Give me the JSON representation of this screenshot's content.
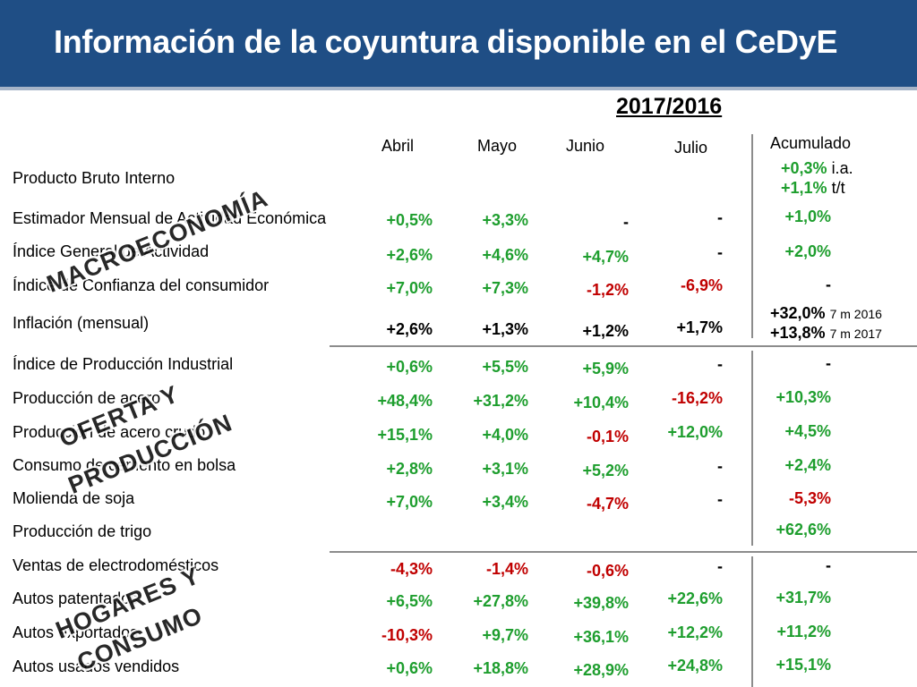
{
  "title": "Información de la coyuntura disponible en el CeDyE",
  "period": "2017/2016",
  "columns": [
    "Abril",
    "Mayo",
    "Junio",
    "Julio",
    "Acumulado"
  ],
  "sections": {
    "macro": "MACROECONOMÍA",
    "oferta": [
      "OFERTA Y",
      "PRODUCCIÓN"
    ],
    "hogares": [
      "HOGARES Y",
      "CONSUMO"
    ]
  },
  "pbi": {
    "label": "Producto Bruto Interno",
    "acc1": "+0,3%",
    "acc1_unit": "i.a.",
    "acc2": "+1,1%",
    "acc2_unit": "t/t"
  },
  "inflacion": {
    "label": "Inflación (mensual)",
    "abril": "+2,6%",
    "mayo": "+1,3%",
    "junio": "+1,2%",
    "julio": "+1,7%",
    "acc1": "+32,0%",
    "acc1_note": "7 m 2016",
    "acc2": "+13,8%",
    "acc2_note": "7 m 2017"
  },
  "rows": [
    {
      "label": "Estimador Mensual de Actividad Económica",
      "abril": "+0,5%",
      "mayo": "+3,3%",
      "junio": "-",
      "julio": "-",
      "acum": "+1,0%"
    },
    {
      "label": "Índice General de Actividad",
      "abril": "+2,6%",
      "mayo": "+4,6%",
      "junio": "+4,7%",
      "julio": "-",
      "acum": "+2,0%"
    },
    {
      "label": "Índice de Confianza del consumidor",
      "abril": "+7,0%",
      "mayo": "+7,3%",
      "junio": "-1,2%",
      "julio": "-6,9%",
      "acum": "-"
    },
    {
      "label": "Índice de Producción Industrial",
      "abril": "+0,6%",
      "mayo": "+5,5%",
      "junio": "+5,9%",
      "julio": "-",
      "acum": "-"
    },
    {
      "label": "Producción de acero",
      "abril": "+48,4%",
      "mayo": "+31,2%",
      "junio": "+10,4%",
      "julio": "-16,2%",
      "acum": "+10,3%"
    },
    {
      "label": "Producción de acero crudo",
      "abril": "+15,1%",
      "mayo": "+4,0%",
      "junio": "-0,1%",
      "julio": "+12,0%",
      "acum": "+4,5%"
    },
    {
      "label": "Consumo de cemento en bolsa",
      "abril": "+2,8%",
      "mayo": "+3,1%",
      "junio": "+5,2%",
      "julio": "-",
      "acum": "+2,4%"
    },
    {
      "label": "Molienda de soja",
      "abril": "+7,0%",
      "mayo": "+3,4%",
      "junio": "-4,7%",
      "julio": "-",
      "acum": "-5,3%"
    },
    {
      "label": "Producción de trigo",
      "abril": "",
      "mayo": "",
      "junio": "",
      "julio": "",
      "acum": "+62,6%"
    },
    {
      "label": "Ventas de electrodomésticos",
      "abril": "-4,3%",
      "mayo": "-1,4%",
      "junio": "-0,6%",
      "julio": "-",
      "acum": "-"
    },
    {
      "label": "Autos patentados",
      "abril": "+6,5%",
      "mayo": "+27,8%",
      "junio": "+39,8%",
      "julio": "+22,6%",
      "acum": "+31,7%"
    },
    {
      "label": "Autos exportados",
      "abril": "-10,3%",
      "mayo": "+9,7%",
      "junio": "+36,1%",
      "julio": "+12,2%",
      "acum": "+11,2%"
    },
    {
      "label": "Autos usados vendidos",
      "abril": "+0,6%",
      "mayo": "+18,8%",
      "junio": "+28,9%",
      "julio": "+24,8%",
      "acum": "+15,1%"
    }
  ],
  "colors": {
    "header_bg": "#1f4e85",
    "positive": "#1e9e2e",
    "negative": "#c00000"
  }
}
